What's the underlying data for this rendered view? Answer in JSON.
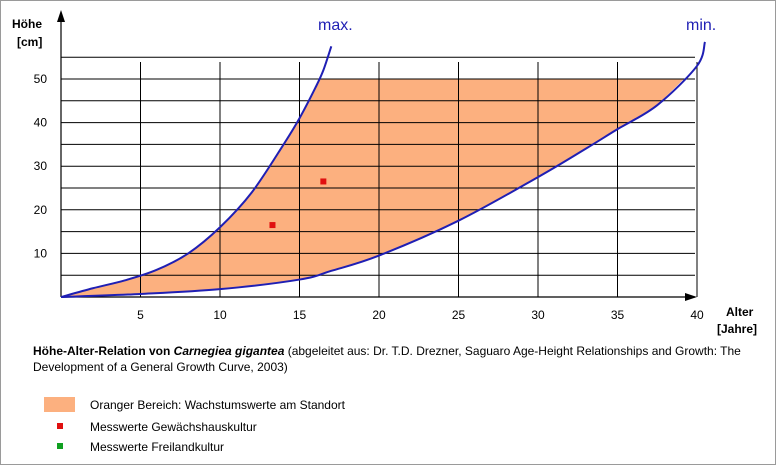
{
  "chart_data": {
    "type": "area",
    "xlabel_line1": "Alter",
    "xlabel_line2": "[Jahre]",
    "ylabel_line1": "Höhe",
    "ylabel_line2": "[cm]",
    "xlim": [
      0,
      40
    ],
    "ylim": [
      0,
      50
    ],
    "x_ticks": [
      5,
      10,
      15,
      20,
      25,
      30,
      35,
      40
    ],
    "y_ticks": [
      10,
      20,
      30,
      40,
      50
    ],
    "grid": true,
    "series": [
      {
        "name": "max.",
        "color": "#1f1fb4",
        "points": [
          [
            0,
            0
          ],
          [
            2,
            2
          ],
          [
            4,
            3.8
          ],
          [
            6,
            6.2
          ],
          [
            8,
            10
          ],
          [
            10,
            16
          ],
          [
            12,
            24
          ],
          [
            14,
            35
          ],
          [
            15,
            41
          ],
          [
            16,
            48
          ],
          [
            16.5,
            52
          ],
          [
            17,
            57.5
          ]
        ]
      },
      {
        "name": "min.",
        "color": "#1f1fb4",
        "points": [
          [
            0,
            0
          ],
          [
            5,
            0.7
          ],
          [
            10,
            1.8
          ],
          [
            15,
            4
          ],
          [
            17,
            6
          ],
          [
            20,
            9.5
          ],
          [
            25,
            17.5
          ],
          [
            30,
            27.5
          ],
          [
            33,
            34
          ],
          [
            35,
            38.5
          ],
          [
            37.5,
            44
          ],
          [
            40,
            53
          ],
          [
            40.5,
            58.5
          ]
        ]
      }
    ],
    "area": {
      "label": "Oranger Bereich: Wachstumswerte am Standort",
      "color": "#fcb07f",
      "y_cap": 50
    },
    "scatter": [
      {
        "label": "Messwerte Gewächshauskultur",
        "color": "#e01010",
        "points": [
          [
            13.3,
            16.5
          ],
          [
            16.5,
            26.5
          ]
        ]
      },
      {
        "label": "Messwerte Freilandkultur",
        "color": "#10a020",
        "points": []
      }
    ]
  },
  "caption": {
    "bold_prefix": "Höhe-Alter-Relation von ",
    "bold_italic": "Carnegiea gigantea",
    "rest": " (abgeleitet aus: Dr. T.D. Drezner, Saguaro Age-Height Relationships and Growth: The Development of a General Growth Curve, 2003)"
  }
}
